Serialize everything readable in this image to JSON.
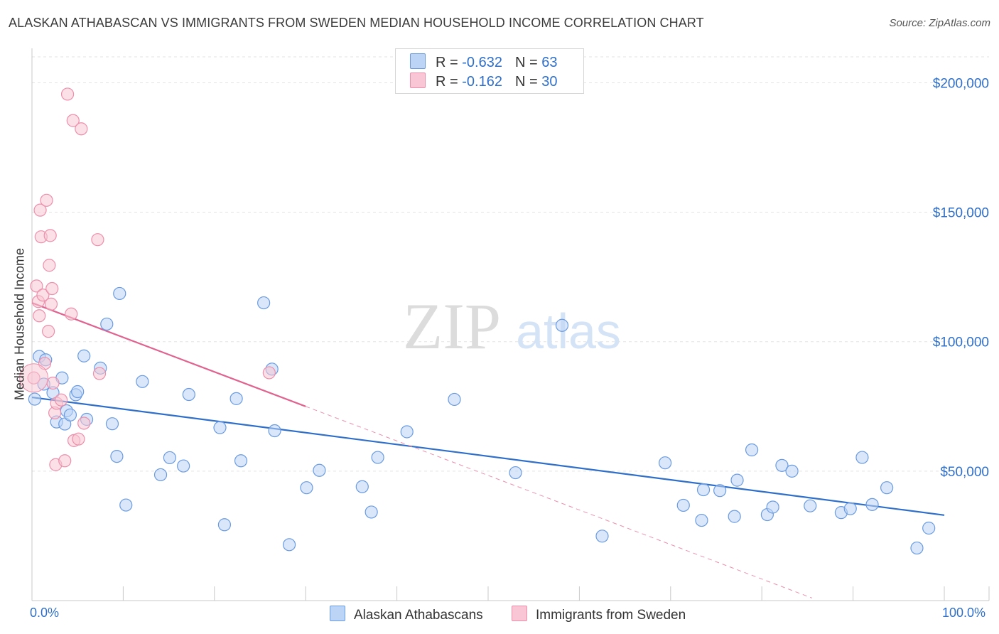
{
  "title": "ALASKAN ATHABASCAN VS IMMIGRANTS FROM SWEDEN MEDIAN HOUSEHOLD INCOME CORRELATION CHART",
  "source": "Source: ZipAtlas.com",
  "watermark": {
    "zip": "ZIP",
    "atlas": "atlas"
  },
  "legend": {
    "rows": [
      {
        "r_label": "R = ",
        "r_value": "-0.632",
        "n_label": "N = ",
        "n_value": "63"
      },
      {
        "r_label": "R = ",
        "r_value": "-0.162",
        "n_label": "N = ",
        "n_value": "30"
      }
    ]
  },
  "colors": {
    "blue_fill": "#bcd4f5",
    "blue_stroke": "#6a9be0",
    "blue_line": "#2f6fc9",
    "pink_fill": "#f8c6d4",
    "pink_stroke": "#ec8fab",
    "pink_line": "#e0628f",
    "grid": "#e3e3e3",
    "axis_text": "#2f6fc9"
  },
  "chart_data": {
    "type": "scatter",
    "title": "ALASKAN ATHABASCAN VS IMMIGRANTS FROM SWEDEN MEDIAN HOUSEHOLD INCOME CORRELATION CHART",
    "xlabel": "",
    "ylabel": "Median Household Income",
    "xlim": [
      0,
      100
    ],
    "ylim": [
      0,
      210000
    ],
    "x_tick_labels": [
      "0.0%",
      "100.0%"
    ],
    "y_ticks": [
      50000,
      100000,
      150000,
      200000
    ],
    "y_tick_labels": [
      "$50,000",
      "$100,000",
      "$150,000",
      "$200,000"
    ],
    "grid": true,
    "series": [
      {
        "name": "Alaskan Athabascans",
        "color": "#6a9be0",
        "x": [
          0.3,
          0.8,
          1.3,
          1.5,
          2.3,
          2.7,
          3.3,
          3.6,
          3.8,
          4.2,
          4.8,
          5.0,
          5.7,
          6.0,
          7.5,
          8.2,
          8.8,
          9.3,
          9.6,
          10.3,
          12.1,
          14.1,
          15.1,
          16.6,
          17.2,
          20.6,
          21.1,
          22.4,
          22.9,
          25.4,
          26.3,
          26.6,
          28.2,
          30.1,
          31.5,
          36.2,
          37.2,
          37.9,
          41.1,
          46.3,
          53.0,
          58.1,
          62.5,
          69.4,
          71.4,
          73.4,
          73.6,
          75.4,
          77.0,
          77.3,
          78.9,
          80.6,
          81.2,
          82.2,
          83.3,
          85.3,
          88.7,
          89.7,
          91.0,
          92.1,
          93.7,
          97.0,
          98.3
        ],
        "y": [
          77800,
          94300,
          83600,
          93000,
          80300,
          69000,
          86000,
          68200,
          73300,
          71700,
          79500,
          80700,
          94500,
          70000,
          89800,
          106800,
          68300,
          55700,
          118600,
          36900,
          84600,
          48600,
          55200,
          52000,
          79600,
          66800,
          29300,
          78000,
          54000,
          115000,
          89400,
          65600,
          21600,
          43600,
          50300,
          44000,
          34200,
          55300,
          65200,
          77700,
          49400,
          106300,
          24900,
          53200,
          36800,
          31000,
          42800,
          42500,
          32500,
          46500,
          58200,
          33200,
          36100,
          52200,
          50000,
          36600,
          34000,
          35500,
          55300,
          37100,
          43600,
          20300,
          28000
        ]
      },
      {
        "name": "Immigrants from Sweden",
        "color": "#ec8fab",
        "x": [
          0.2,
          0.5,
          0.7,
          0.8,
          0.9,
          1.0,
          1.2,
          1.4,
          1.6,
          1.8,
          1.9,
          2.0,
          2.1,
          2.2,
          2.3,
          2.5,
          2.6,
          2.7,
          3.2,
          3.6,
          3.9,
          4.3,
          4.5,
          4.6,
          5.1,
          5.4,
          5.7,
          7.2,
          7.4,
          26.0
        ],
        "y": [
          86000,
          121500,
          115500,
          110000,
          150800,
          140500,
          118000,
          91600,
          154600,
          104000,
          129500,
          141000,
          114500,
          120500,
          84000,
          72500,
          52500,
          76200,
          77500,
          54000,
          195600,
          110700,
          185400,
          61800,
          62400,
          182200,
          68500,
          139400,
          87700,
          88000
        ]
      }
    ],
    "trend_lines": [
      {
        "series": "Alaskan Athabascans",
        "x": [
          0,
          100
        ],
        "y": [
          78500,
          33000
        ]
      },
      {
        "series": "Immigrants from Sweden",
        "x": [
          0,
          30
        ],
        "y": [
          115000,
          75000
        ],
        "dashed_extension_to_x": 85.5
      }
    ]
  }
}
